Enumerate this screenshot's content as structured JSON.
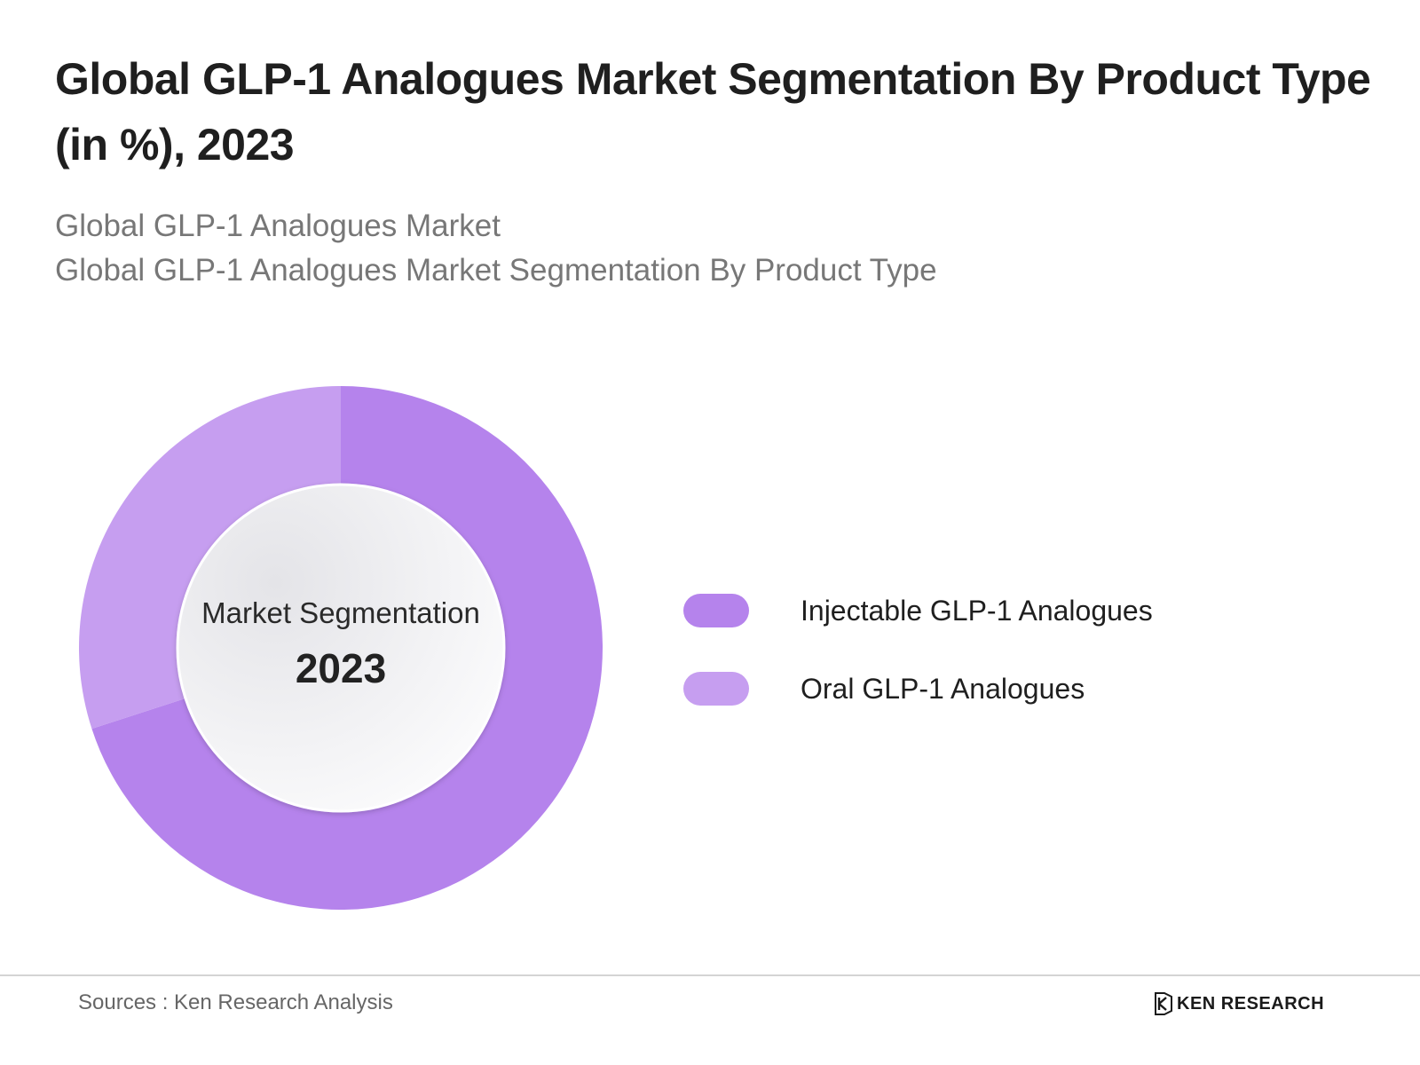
{
  "header": {
    "title": "Global GLP-1 Analogues Market Segmentation By Product Type (in %), 2023",
    "subtitle_line1": "Global GLP-1 Analogues Market",
    "subtitle_line2": "Global GLP-1 Analogues Market Segmentation By Product Type"
  },
  "chart_data": {
    "type": "pie",
    "variant": "donut",
    "center_label": "Market Segmentation",
    "center_year": "2023",
    "legend_position": "right",
    "slices": [
      {
        "label": "Injectable GLP-1 Analogues",
        "value": 70,
        "color": "#b583ec"
      },
      {
        "label": "Oral GLP-1 Analogues",
        "value": 30,
        "color": "#c69ef0"
      }
    ]
  },
  "footer": {
    "source": "Sources : Ken Research Analysis",
    "logo_text": "KEN RESEARCH"
  }
}
